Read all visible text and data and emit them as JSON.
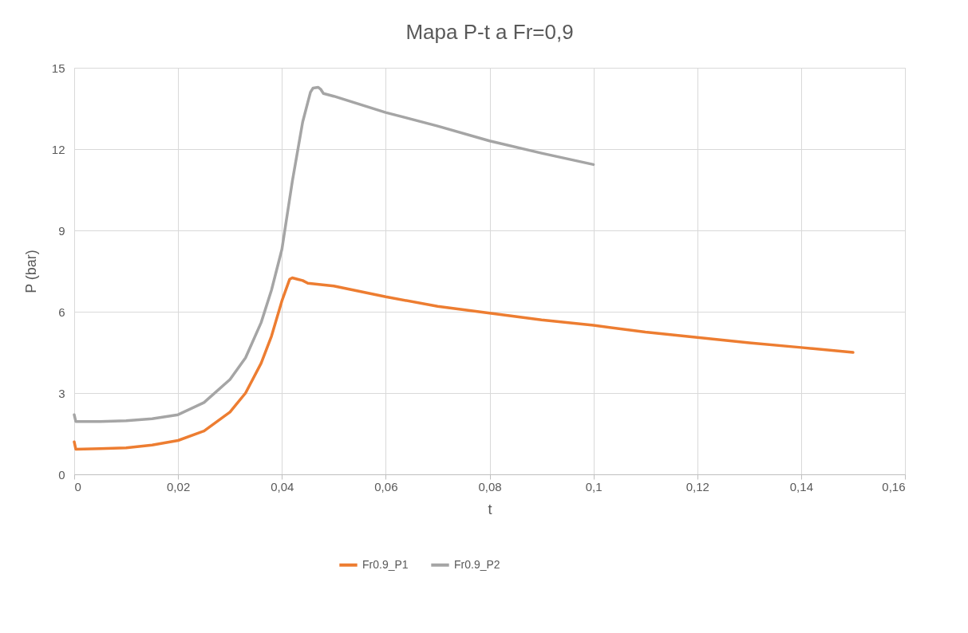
{
  "chart_data": {
    "type": "line",
    "title": "Mapa P-t a Fr=0,9",
    "xlabel": "t",
    "ylabel": "P (bar)",
    "xlim": [
      0,
      0.16
    ],
    "ylim": [
      0,
      15
    ],
    "xticks": [
      {
        "value": 0,
        "label": "0"
      },
      {
        "value": 0.02,
        "label": "0,02"
      },
      {
        "value": 0.04,
        "label": "0,04"
      },
      {
        "value": 0.06,
        "label": "0,06"
      },
      {
        "value": 0.08,
        "label": "0,08"
      },
      {
        "value": 0.1,
        "label": "0,1"
      },
      {
        "value": 0.12,
        "label": "0,12"
      },
      {
        "value": 0.14,
        "label": "0,14"
      },
      {
        "value": 0.16,
        "label": "0,16"
      }
    ],
    "yticks": [
      0,
      3,
      6,
      9,
      12,
      15
    ],
    "grid": true,
    "legend": "bottom",
    "marker": "none",
    "line_style": "solid",
    "series": [
      {
        "name": "Fr0.9_P1",
        "color": "#ed7d31",
        "x": [
          0,
          0.0003,
          0.005,
          0.01,
          0.015,
          0.02,
          0.025,
          0.03,
          0.033,
          0.036,
          0.038,
          0.04,
          0.0415,
          0.042,
          0.043,
          0.044,
          0.045,
          0.05,
          0.06,
          0.07,
          0.08,
          0.09,
          0.1,
          0.11,
          0.12,
          0.13,
          0.14,
          0.15
        ],
        "values": [
          1.2,
          0.93,
          0.95,
          0.98,
          1.08,
          1.25,
          1.6,
          2.3,
          3.0,
          4.1,
          5.1,
          6.4,
          7.2,
          7.25,
          7.2,
          7.15,
          7.05,
          6.95,
          6.55,
          6.2,
          5.95,
          5.7,
          5.5,
          5.25,
          5.05,
          4.85,
          4.68,
          4.5
        ]
      },
      {
        "name": "Fr0.9_P2",
        "color": "#a5a5a5",
        "x": [
          0,
          0.0003,
          0.005,
          0.01,
          0.015,
          0.02,
          0.025,
          0.03,
          0.033,
          0.036,
          0.038,
          0.04,
          0.042,
          0.044,
          0.0455,
          0.046,
          0.047,
          0.0475,
          0.048,
          0.05,
          0.06,
          0.07,
          0.08,
          0.09,
          0.1
        ],
        "values": [
          2.2,
          1.95,
          1.95,
          1.98,
          2.05,
          2.2,
          2.65,
          3.5,
          4.3,
          5.6,
          6.8,
          8.3,
          10.8,
          13.0,
          14.1,
          14.25,
          14.28,
          14.2,
          14.05,
          13.95,
          13.35,
          12.85,
          12.3,
          11.85,
          11.43
        ]
      }
    ]
  }
}
